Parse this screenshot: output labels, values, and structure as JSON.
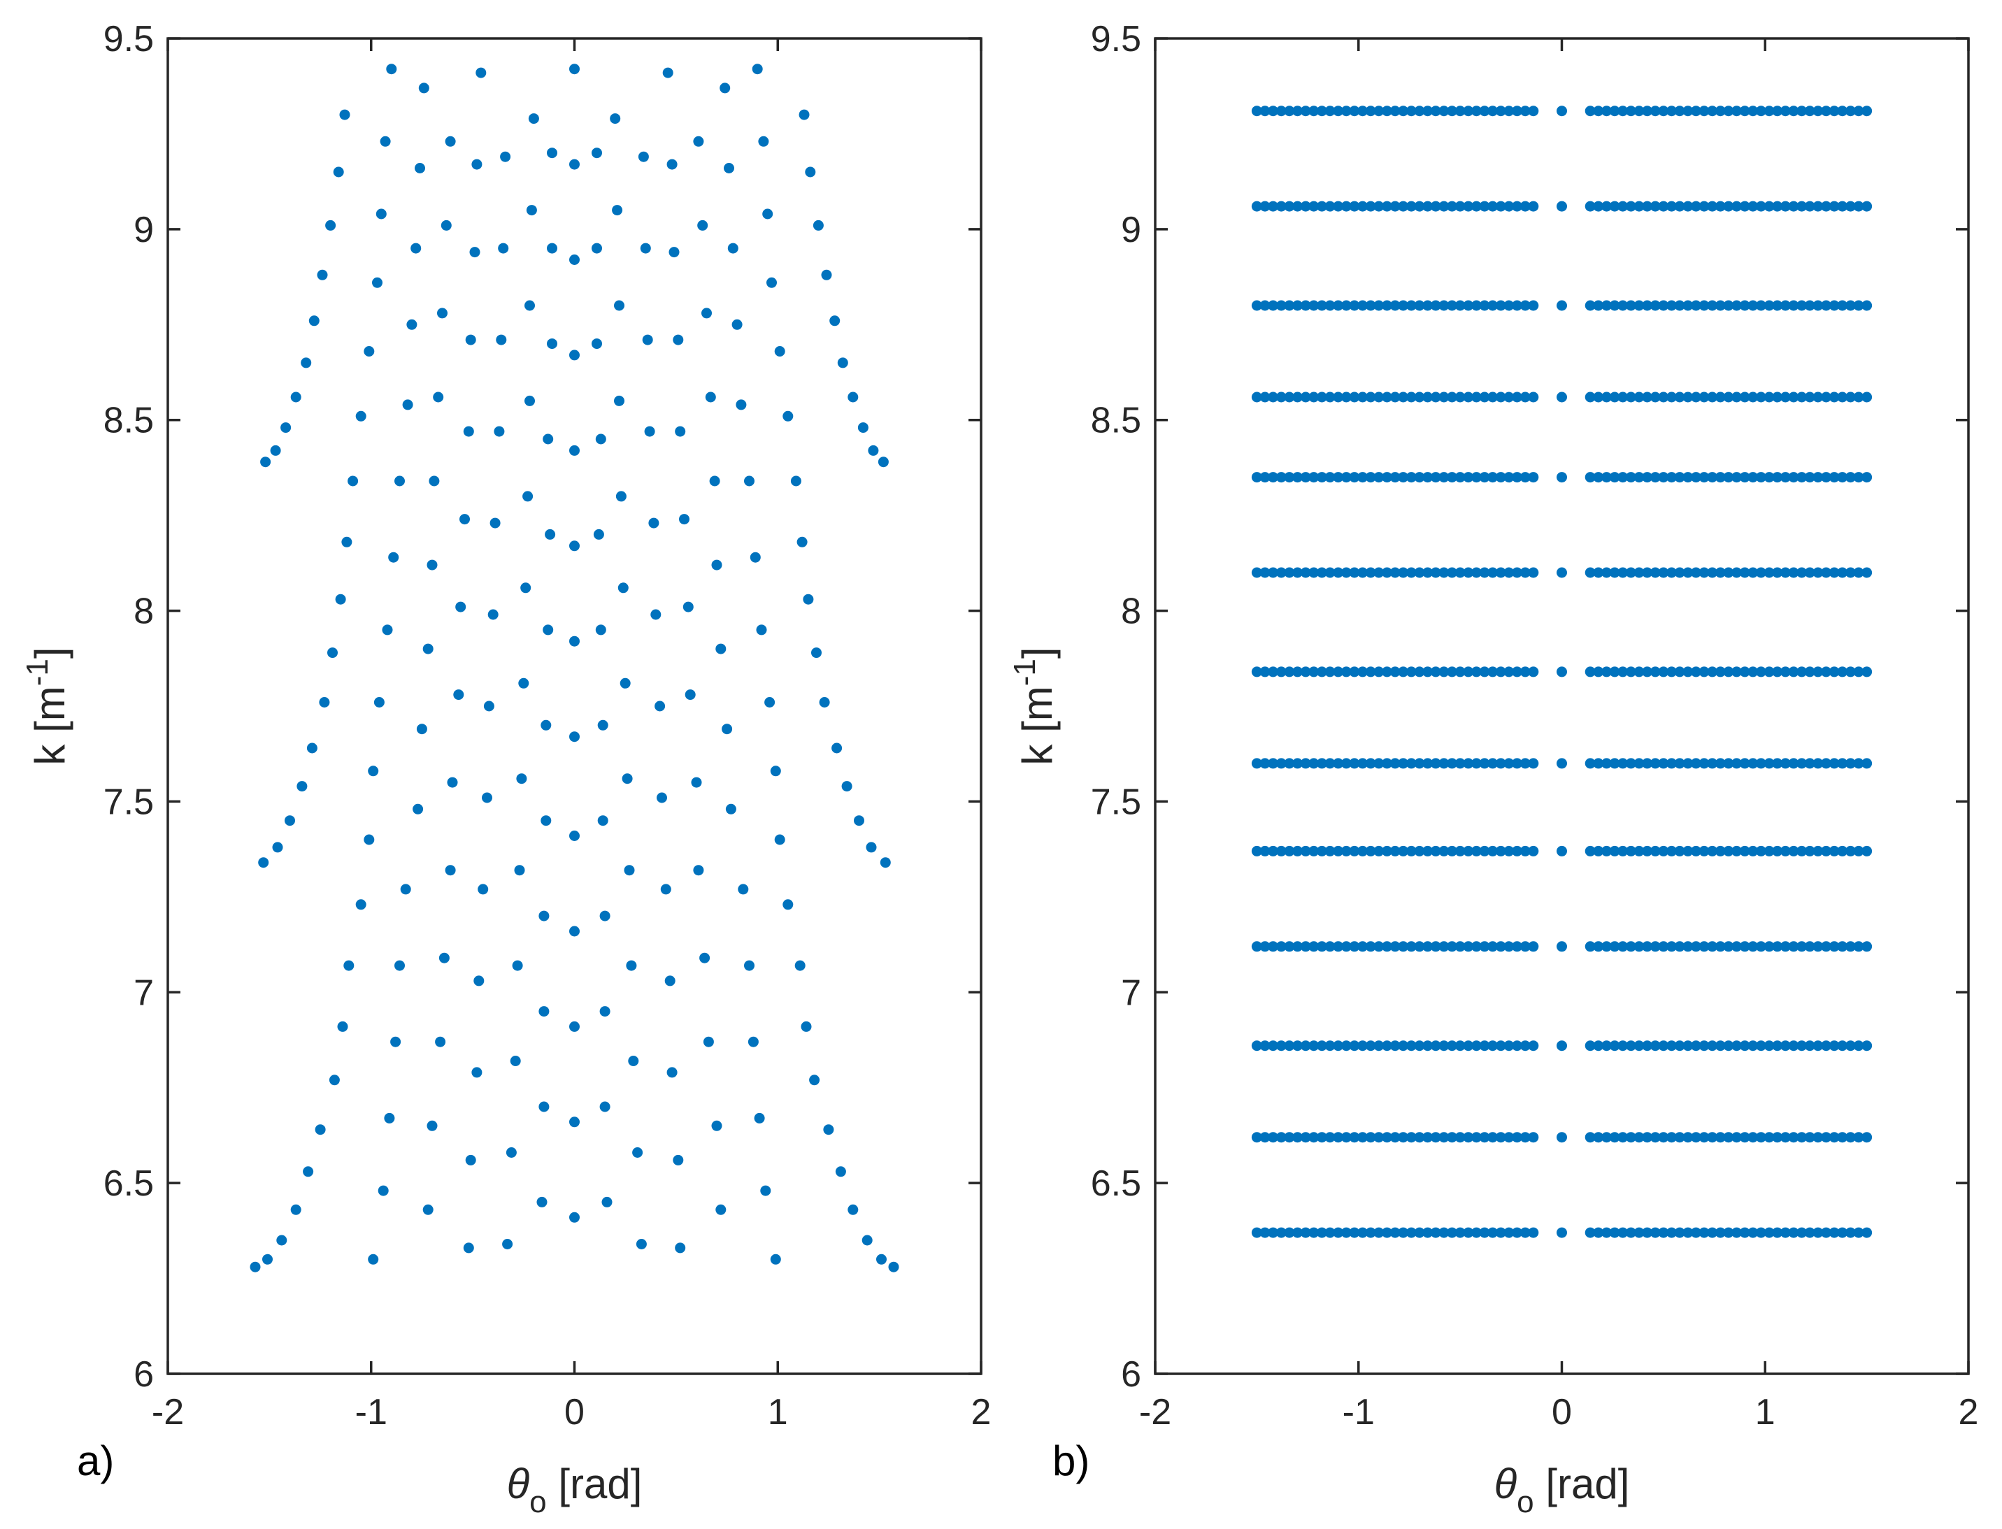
{
  "colors": {
    "marker": "#0072BD",
    "axis": "#262626",
    "background": "#ffffff"
  },
  "chart_data": [
    {
      "panel_tag": "a)",
      "type": "scatter",
      "xlabel": {
        "symbol": "θ",
        "subscript": "o",
        "unit": " [rad]"
      },
      "ylabel": {
        "text": "k [m",
        "sup": "-1",
        "close": "]"
      },
      "xlim": [
        -2,
        2
      ],
      "ylim": [
        6,
        9.5
      ],
      "xticks": [
        "-2",
        "-1",
        "0",
        "1",
        "2"
      ],
      "yticks": [
        "6",
        "6.5",
        "7",
        "7.5",
        "8",
        "8.5",
        "9",
        "9.5"
      ],
      "grid": false,
      "legend": "none",
      "series": [
        {
          "points": [
            [
              -1.57,
              6.28
            ],
            [
              -1.51,
              6.3
            ],
            [
              -1.44,
              6.35
            ],
            [
              -1.37,
              6.43
            ],
            [
              -1.31,
              6.53
            ],
            [
              -1.25,
              6.64
            ],
            [
              -1.18,
              6.77
            ],
            [
              -1.14,
              6.91
            ],
            [
              -1.11,
              7.07
            ],
            [
              -1.05,
              7.23
            ],
            [
              -1.01,
              7.4
            ],
            [
              -0.99,
              7.58
            ],
            [
              -0.96,
              7.76
            ],
            [
              -0.92,
              7.95
            ],
            [
              -0.89,
              8.14
            ],
            [
              -0.86,
              8.34
            ],
            [
              -0.82,
              8.54
            ],
            [
              -0.8,
              8.75
            ],
            [
              -0.78,
              8.95
            ],
            [
              -0.76,
              9.16
            ],
            [
              -0.74,
              9.37
            ],
            [
              -1.53,
              7.34
            ],
            [
              -1.46,
              7.38
            ],
            [
              -1.4,
              7.45
            ],
            [
              -1.34,
              7.54
            ],
            [
              -1.29,
              7.64
            ],
            [
              -1.23,
              7.76
            ],
            [
              -1.19,
              7.89
            ],
            [
              -1.15,
              8.03
            ],
            [
              -1.12,
              8.18
            ],
            [
              -1.09,
              8.34
            ],
            [
              -1.05,
              8.51
            ],
            [
              -1.01,
              8.68
            ],
            [
              -0.97,
              8.86
            ],
            [
              -0.95,
              9.04
            ],
            [
              -0.93,
              9.23
            ],
            [
              -0.9,
              9.42
            ],
            [
              -1.52,
              8.39
            ],
            [
              -1.47,
              8.42
            ],
            [
              -1.42,
              8.48
            ],
            [
              -1.37,
              8.56
            ],
            [
              -1.32,
              8.65
            ],
            [
              -1.28,
              8.76
            ],
            [
              -1.24,
              8.88
            ],
            [
              -1.2,
              9.01
            ],
            [
              -1.16,
              9.15
            ],
            [
              -1.13,
              9.3
            ],
            [
              -0.99,
              6.3
            ],
            [
              -0.94,
              6.48
            ],
            [
              -0.91,
              6.67
            ],
            [
              -0.88,
              6.87
            ],
            [
              -0.86,
              7.07
            ],
            [
              -0.83,
              7.27
            ],
            [
              -0.77,
              7.48
            ],
            [
              -0.75,
              7.69
            ],
            [
              -0.72,
              7.9
            ],
            [
              -0.7,
              8.12
            ],
            [
              -0.69,
              8.34
            ],
            [
              -0.67,
              8.56
            ],
            [
              -0.65,
              8.78
            ],
            [
              -0.63,
              9.01
            ],
            [
              -0.61,
              9.23
            ],
            [
              -0.72,
              6.43
            ],
            [
              -0.7,
              6.65
            ],
            [
              -0.66,
              6.87
            ],
            [
              -0.64,
              7.09
            ],
            [
              -0.61,
              7.32
            ],
            [
              -0.6,
              7.55
            ],
            [
              -0.57,
              7.78
            ],
            [
              -0.56,
              8.01
            ],
            [
              -0.54,
              8.24
            ],
            [
              -0.52,
              8.47
            ],
            [
              -0.51,
              8.71
            ],
            [
              -0.49,
              8.94
            ],
            [
              -0.48,
              9.17
            ],
            [
              -0.46,
              9.41
            ],
            [
              -0.52,
              6.33
            ],
            [
              -0.51,
              6.56
            ],
            [
              -0.48,
              6.79
            ],
            [
              -0.47,
              7.03
            ],
            [
              -0.45,
              7.27
            ],
            [
              -0.43,
              7.51
            ],
            [
              -0.42,
              7.75
            ],
            [
              -0.4,
              7.99
            ],
            [
              -0.39,
              8.23
            ],
            [
              -0.37,
              8.47
            ],
            [
              -0.36,
              8.71
            ],
            [
              -0.35,
              8.95
            ],
            [
              -0.34,
              9.19
            ],
            [
              -0.33,
              6.34
            ],
            [
              -0.31,
              6.58
            ],
            [
              -0.29,
              6.82
            ],
            [
              -0.28,
              7.07
            ],
            [
              -0.27,
              7.32
            ],
            [
              -0.26,
              7.56
            ],
            [
              -0.25,
              7.81
            ],
            [
              -0.24,
              8.06
            ],
            [
              -0.23,
              8.3
            ],
            [
              -0.22,
              8.55
            ],
            [
              -0.22,
              8.8
            ],
            [
              -0.21,
              9.05
            ],
            [
              -0.2,
              9.29
            ],
            [
              -0.16,
              6.45
            ],
            [
              -0.15,
              6.7
            ],
            [
              -0.15,
              6.95
            ],
            [
              -0.15,
              7.2
            ],
            [
              -0.14,
              7.45
            ],
            [
              -0.14,
              7.7
            ],
            [
              -0.13,
              7.95
            ],
            [
              -0.12,
              8.2
            ],
            [
              -0.13,
              8.45
            ],
            [
              -0.11,
              8.7
            ],
            [
              -0.11,
              8.95
            ],
            [
              -0.11,
              9.2
            ],
            [
              0.0,
              6.41
            ],
            [
              0.0,
              6.66
            ],
            [
              0.0,
              6.91
            ],
            [
              0.0,
              7.16
            ],
            [
              0.0,
              7.41
            ],
            [
              0.0,
              7.67
            ],
            [
              0.0,
              7.92
            ],
            [
              0.0,
              8.17
            ],
            [
              0.0,
              8.42
            ],
            [
              0.0,
              8.67
            ],
            [
              0.0,
              8.92
            ],
            [
              0.0,
              9.17
            ],
            [
              0.0,
              9.42
            ],
            [
              0.16,
              6.45
            ],
            [
              0.15,
              6.7
            ],
            [
              0.15,
              6.95
            ],
            [
              0.15,
              7.2
            ],
            [
              0.14,
              7.45
            ],
            [
              0.14,
              7.7
            ],
            [
              0.13,
              7.95
            ],
            [
              0.12,
              8.2
            ],
            [
              0.13,
              8.45
            ],
            [
              0.11,
              8.7
            ],
            [
              0.11,
              8.95
            ],
            [
              0.11,
              9.2
            ],
            [
              0.33,
              6.34
            ],
            [
              0.31,
              6.58
            ],
            [
              0.29,
              6.82
            ],
            [
              0.28,
              7.07
            ],
            [
              0.27,
              7.32
            ],
            [
              0.26,
              7.56
            ],
            [
              0.25,
              7.81
            ],
            [
              0.24,
              8.06
            ],
            [
              0.23,
              8.3
            ],
            [
              0.22,
              8.55
            ],
            [
              0.22,
              8.8
            ],
            [
              0.21,
              9.05
            ],
            [
              0.2,
              9.29
            ],
            [
              0.52,
              6.33
            ],
            [
              0.51,
              6.56
            ],
            [
              0.48,
              6.79
            ],
            [
              0.47,
              7.03
            ],
            [
              0.45,
              7.27
            ],
            [
              0.43,
              7.51
            ],
            [
              0.42,
              7.75
            ],
            [
              0.4,
              7.99
            ],
            [
              0.39,
              8.23
            ],
            [
              0.37,
              8.47
            ],
            [
              0.36,
              8.71
            ],
            [
              0.35,
              8.95
            ],
            [
              0.34,
              9.19
            ],
            [
              0.72,
              6.43
            ],
            [
              0.7,
              6.65
            ],
            [
              0.66,
              6.87
            ],
            [
              0.64,
              7.09
            ],
            [
              0.61,
              7.32
            ],
            [
              0.6,
              7.55
            ],
            [
              0.57,
              7.78
            ],
            [
              0.56,
              8.01
            ],
            [
              0.54,
              8.24
            ],
            [
              0.52,
              8.47
            ],
            [
              0.51,
              8.71
            ],
            [
              0.49,
              8.94
            ],
            [
              0.48,
              9.17
            ],
            [
              0.46,
              9.41
            ],
            [
              0.99,
              6.3
            ],
            [
              0.94,
              6.48
            ],
            [
              0.91,
              6.67
            ],
            [
              0.88,
              6.87
            ],
            [
              0.86,
              7.07
            ],
            [
              0.83,
              7.27
            ],
            [
              0.77,
              7.48
            ],
            [
              0.75,
              7.69
            ],
            [
              0.72,
              7.9
            ],
            [
              0.7,
              8.12
            ],
            [
              0.69,
              8.34
            ],
            [
              0.67,
              8.56
            ],
            [
              0.65,
              8.78
            ],
            [
              0.63,
              9.01
            ],
            [
              0.61,
              9.23
            ],
            [
              1.57,
              6.28
            ],
            [
              1.51,
              6.3
            ],
            [
              1.44,
              6.35
            ],
            [
              1.37,
              6.43
            ],
            [
              1.31,
              6.53
            ],
            [
              1.25,
              6.64
            ],
            [
              1.18,
              6.77
            ],
            [
              1.14,
              6.91
            ],
            [
              1.11,
              7.07
            ],
            [
              1.05,
              7.23
            ],
            [
              1.01,
              7.4
            ],
            [
              0.99,
              7.58
            ],
            [
              0.96,
              7.76
            ],
            [
              0.92,
              7.95
            ],
            [
              0.89,
              8.14
            ],
            [
              0.86,
              8.34
            ],
            [
              0.82,
              8.54
            ],
            [
              0.8,
              8.75
            ],
            [
              0.78,
              8.95
            ],
            [
              0.76,
              9.16
            ],
            [
              0.74,
              9.37
            ],
            [
              1.53,
              7.34
            ],
            [
              1.46,
              7.38
            ],
            [
              1.4,
              7.45
            ],
            [
              1.34,
              7.54
            ],
            [
              1.29,
              7.64
            ],
            [
              1.23,
              7.76
            ],
            [
              1.19,
              7.89
            ],
            [
              1.15,
              8.03
            ],
            [
              1.12,
              8.18
            ],
            [
              1.09,
              8.34
            ],
            [
              1.05,
              8.51
            ],
            [
              1.01,
              8.68
            ],
            [
              0.97,
              8.86
            ],
            [
              0.95,
              9.04
            ],
            [
              0.93,
              9.23
            ],
            [
              0.9,
              9.42
            ],
            [
              1.52,
              8.39
            ],
            [
              1.47,
              8.42
            ],
            [
              1.42,
              8.48
            ],
            [
              1.37,
              8.56
            ],
            [
              1.32,
              8.65
            ],
            [
              1.28,
              8.76
            ],
            [
              1.24,
              8.88
            ],
            [
              1.2,
              9.01
            ],
            [
              1.16,
              9.15
            ],
            [
              1.13,
              9.3
            ]
          ]
        }
      ]
    },
    {
      "panel_tag": "b)",
      "type": "scatter",
      "xlabel": {
        "symbol": "θ",
        "subscript": "o",
        "unit": " [rad]"
      },
      "ylabel": {
        "text": "k [m",
        "sup": "-1",
        "close": "]"
      },
      "xlim": [
        -2,
        2
      ],
      "ylim": [
        6,
        9.5
      ],
      "xticks": [
        "-2",
        "-1",
        "0",
        "1",
        "2"
      ],
      "yticks": [
        "6",
        "6.5",
        "7",
        "7.5",
        "8",
        "8.5",
        "9",
        "9.5"
      ],
      "grid": false,
      "legend": "none",
      "series": [
        {
          "k_levels": [
            6.37,
            6.62,
            6.86,
            7.12,
            7.37,
            7.6,
            7.84,
            8.1,
            8.35,
            8.56,
            8.8,
            9.06,
            9.31
          ],
          "theta_values": [
            -1.5,
            -1.46,
            -1.42,
            -1.38,
            -1.34,
            -1.3,
            -1.26,
            -1.22,
            -1.18,
            -1.14,
            -1.1,
            -1.06,
            -1.02,
            -0.98,
            -0.94,
            -0.9,
            -0.86,
            -0.82,
            -0.78,
            -0.74,
            -0.7,
            -0.66,
            -0.62,
            -0.58,
            -0.54,
            -0.5,
            -0.46,
            -0.42,
            -0.38,
            -0.34,
            -0.3,
            -0.26,
            -0.22,
            -0.18,
            -0.14,
            0.0,
            0.14,
            0.18,
            0.22,
            0.26,
            0.3,
            0.34,
            0.38,
            0.42,
            0.46,
            0.5,
            0.54,
            0.58,
            0.62,
            0.66,
            0.7,
            0.74,
            0.78,
            0.82,
            0.86,
            0.9,
            0.94,
            0.98,
            1.02,
            1.06,
            1.1,
            1.14,
            1.18,
            1.22,
            1.26,
            1.3,
            1.34,
            1.38,
            1.42,
            1.46,
            1.5
          ]
        }
      ]
    }
  ]
}
